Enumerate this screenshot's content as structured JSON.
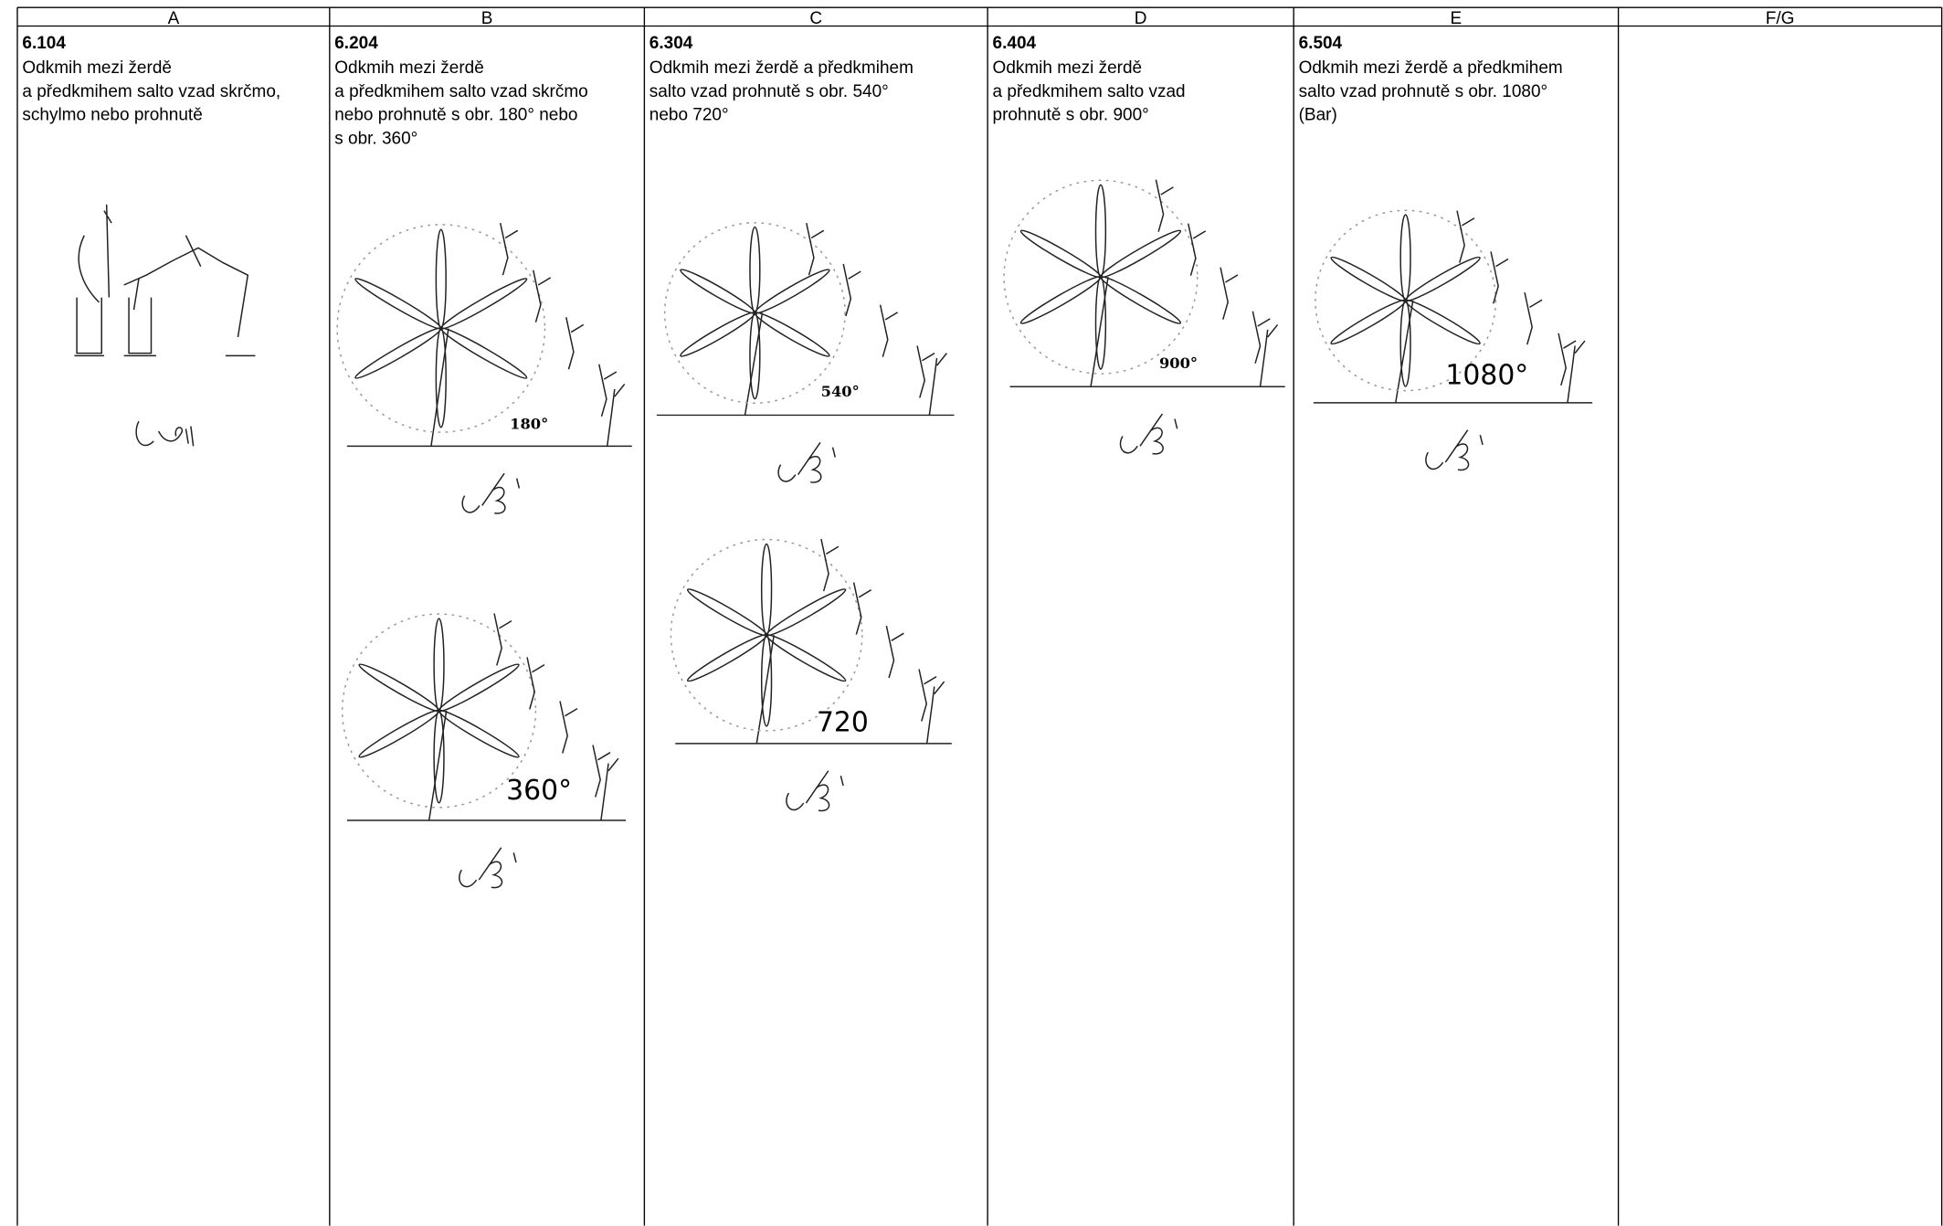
{
  "header": [
    "A",
    "B",
    "C",
    "D",
    "E",
    "F/G"
  ],
  "cells": [
    {
      "code": "6.104",
      "lines": [
        "Odkmih mezi žerdě",
        "a předkmihem salto vzad skrčmo,",
        "schylmo nebo prohnutě"
      ]
    },
    {
      "code": "6.204",
      "lines": [
        "Odkmih mezi žerdě",
        "a předkmihem salto vzad skrčmo",
        "nebo prohnutě s obr. 180° nebo",
        "s obr. 360°"
      ],
      "figures": [
        {
          "label": "180°"
        },
        {
          "label": "360°"
        }
      ]
    },
    {
      "code": "6.304",
      "lines": [
        "Odkmih mezi žerdě a předkmihem",
        "salto vzad prohnutě s obr. 540°",
        "nebo 720°"
      ],
      "figures": [
        {
          "label": "540°"
        },
        {
          "label": "720"
        }
      ]
    },
    {
      "code": "6.404",
      "lines": [
        "Odkmih mezi žerdě",
        "a předkmihem salto vzad",
        "prohnutě s obr. 900°"
      ],
      "figures": [
        {
          "label": "900°"
        }
      ]
    },
    {
      "code": "6.504",
      "lines": [
        "Odkmih mezi žerdě a předkmihem",
        "salto vzad prohnutě s obr. 1080°",
        "(Bar)"
      ],
      "figures": [
        {
          "label": "1080°"
        }
      ]
    }
  ]
}
